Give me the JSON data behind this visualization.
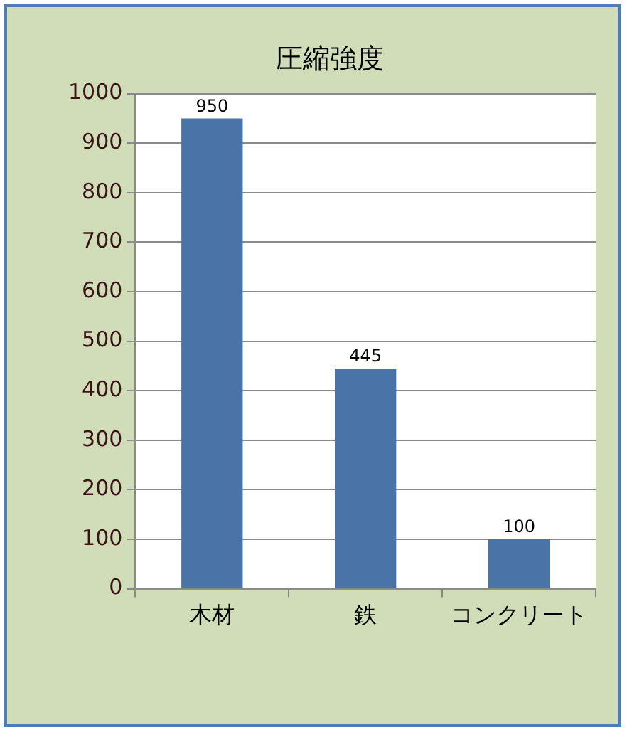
{
  "chart_data": {
    "type": "bar",
    "title": "圧縮強度",
    "categories": [
      "木材",
      "鉄",
      "コンクリート"
    ],
    "values": [
      950,
      445,
      100
    ],
    "color": "#4a74a8",
    "ylim": [
      0,
      1000
    ],
    "yticks": [
      0,
      100,
      200,
      300,
      400,
      500,
      600,
      700,
      800,
      900,
      1000
    ],
    "grid": "y",
    "data_labels": true
  }
}
